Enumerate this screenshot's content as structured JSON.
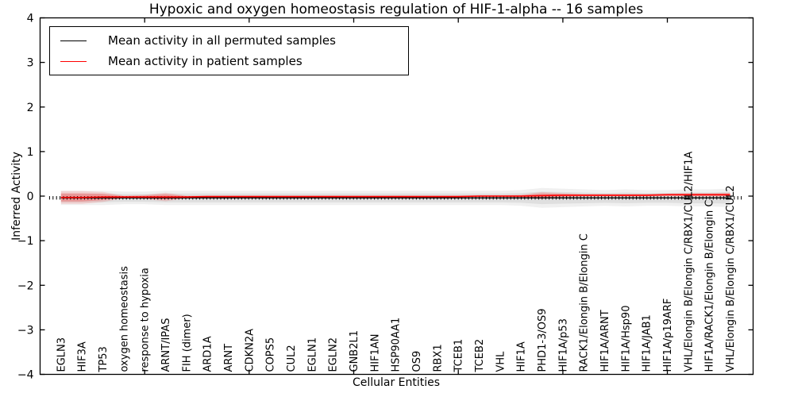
{
  "title": "Hypoxic and oxygen homeostasis regulation of HIF-1-alpha -- 16 samples",
  "legend": {
    "items": [
      {
        "label": "Mean activity in all permuted samples",
        "color": "#000000"
      },
      {
        "label": "Mean activity in patient samples",
        "color": "#ff0000"
      }
    ],
    "position": "upper left"
  },
  "axes": {
    "ylabel": "Inferred Activity",
    "xlabel": "Cellular Entities",
    "ylim": [
      -4,
      4
    ],
    "yticks": [
      -4,
      -3,
      -2,
      -1,
      0,
      1,
      2,
      3,
      4
    ],
    "ytick_labels": [
      "−4",
      "−3",
      "−2",
      "−1",
      "0",
      "1",
      "2",
      "3",
      "4"
    ],
    "xticks": [
      5,
      10,
      15,
      20,
      25,
      30
    ],
    "frame_color": "#000000",
    "background": "#ffffff"
  },
  "chart_data": {
    "type": "line",
    "title": "Hypoxic and oxygen homeostasis regulation of HIF-1-alpha -- 16 samples",
    "xlabel": "Cellular Entities",
    "ylabel": "Inferred Activity",
    "ylim": [
      -4,
      4
    ],
    "xlim": [
      0,
      34.1
    ],
    "grid": false,
    "legend_position": "upper left",
    "categories": [
      "EGLN3",
      "HIF3A",
      "TP53",
      "oxygen homeostasis",
      "response to hypoxia",
      "ARNT/IPAS",
      "FIH (dimer)",
      "ARD1A",
      "ARNT",
      "CDKN2A",
      "COPS5",
      "CUL2",
      "EGLN1",
      "EGLN2",
      "GNB2L1",
      "HIF1AN",
      "HSP90AA1",
      "OS9",
      "RBX1",
      "TCEB1",
      "TCEB2",
      "VHL",
      "HIF1A",
      "PHD1-3/OS9",
      "HIF1A/p53",
      "RACK1/Elongin B/Elongin C",
      "HIF1A/ARNT",
      "HIF1A/Hsp90",
      "HIF1A/JAB1",
      "HIF1A/p19ARF",
      "VHL/Elongin B/Elongin C/RBX1/CUL2/HIF1A",
      "HIF1A/RACK1/Elongin B/Elongin C",
      "VHL/Elongin B/Elongin C/RBX1/CUL2"
    ],
    "series": [
      {
        "name": "Mean activity in all permuted samples",
        "color": "#000000",
        "line_width": 1.3,
        "marker": "dense-vertical-dashes",
        "values": [
          -0.04,
          -0.04,
          -0.04,
          -0.04,
          -0.04,
          -0.04,
          -0.04,
          -0.04,
          -0.04,
          -0.04,
          -0.04,
          -0.04,
          -0.04,
          -0.04,
          -0.04,
          -0.04,
          -0.04,
          -0.04,
          -0.04,
          -0.04,
          -0.04,
          -0.04,
          -0.04,
          -0.04,
          -0.04,
          -0.04,
          -0.04,
          -0.04,
          -0.04,
          -0.04,
          -0.04,
          -0.04,
          -0.04
        ],
        "band_halfwidth": [
          0.1,
          0.1,
          0.1,
          0.09,
          0.09,
          0.1,
          0.1,
          0.1,
          0.1,
          0.1,
          0.1,
          0.1,
          0.1,
          0.1,
          0.1,
          0.1,
          0.1,
          0.1,
          0.1,
          0.1,
          0.1,
          0.1,
          0.11,
          0.14,
          0.13,
          0.12,
          0.11,
          0.12,
          0.11,
          0.11,
          0.12,
          0.12,
          0.13
        ],
        "band_opacity_outer": 0.06,
        "band_opacity_inner": 0.07
      },
      {
        "name": "Mean activity in patient samples",
        "color": "#ff0000",
        "line_width": 1.6,
        "marker": "none",
        "values": [
          -0.03,
          -0.03,
          -0.02,
          -0.02,
          -0.02,
          -0.02,
          -0.02,
          -0.01,
          -0.01,
          -0.01,
          -0.01,
          -0.01,
          -0.01,
          -0.01,
          -0.01,
          -0.01,
          -0.01,
          -0.01,
          -0.01,
          -0.01,
          0.0,
          0.0,
          0.0,
          0.01,
          0.02,
          0.02,
          0.02,
          0.02,
          0.02,
          0.03,
          0.03,
          0.03,
          0.03
        ],
        "band_halfwidth": [
          0.09,
          0.09,
          0.07,
          0.02,
          0.03,
          0.06,
          0.02,
          0.015,
          0.015,
          0.015,
          0.015,
          0.015,
          0.015,
          0.015,
          0.015,
          0.015,
          0.015,
          0.015,
          0.015,
          0.015,
          0.015,
          0.015,
          0.02,
          0.05,
          0.03,
          0.02,
          0.02,
          0.02,
          0.02,
          0.02,
          0.025,
          0.025,
          0.03
        ],
        "band_opacity_outer": 0.12,
        "band_opacity_inner": 0.22
      }
    ]
  }
}
